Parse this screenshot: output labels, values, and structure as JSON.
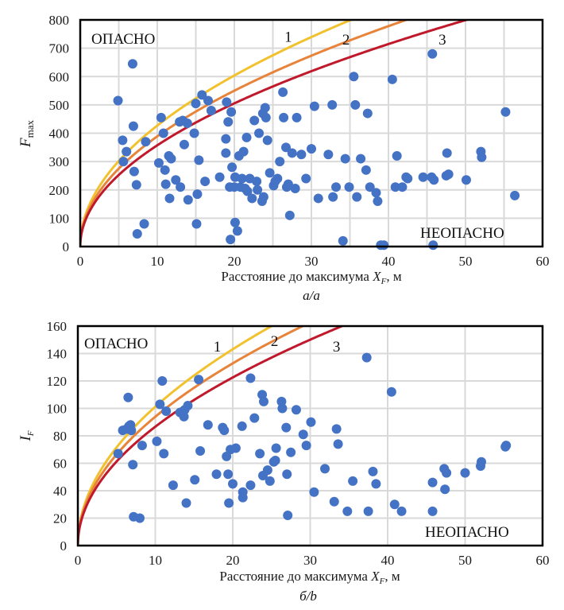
{
  "chart_data": [
    {
      "type": "scatter",
      "panel_caption": "а/а",
      "xlabel_text": "Расстояние до максимума ",
      "xlabel_var": "X",
      "xlabel_sub": "F",
      "xlabel_unit": ", м",
      "ylabel_var": "F",
      "ylabel_sub": "max",
      "xlim": [
        0,
        60
      ],
      "ylim": [
        0,
        800
      ],
      "xticks": [
        0,
        10,
        20,
        30,
        40,
        50,
        60
      ],
      "yticks": [
        0,
        100,
        200,
        300,
        400,
        500,
        600,
        700,
        800
      ],
      "x_minor_grid_step": 5,
      "grid": true,
      "region_labels": {
        "danger": "ОПАСНО",
        "safe": "НЕОПАСНО"
      },
      "curves": [
        {
          "label": "1",
          "color": "#F2C12E",
          "model": "y = a*sqrt(x)",
          "a": 135,
          "label_x": 27,
          "label_y": 740
        },
        {
          "label": "2",
          "color": "#E8833A",
          "model": "y = a*sqrt(x)",
          "a": 123,
          "label_x": 34.5,
          "label_y": 730
        },
        {
          "label": "3",
          "color": "#C0192C",
          "model": "y = a*sqrt(x)",
          "a": 113,
          "label_x": 47,
          "label_y": 730
        }
      ],
      "point_color": "#4472C4",
      "points": [
        [
          4.9,
          515
        ],
        [
          5.5,
          375
        ],
        [
          5.6,
          300
        ],
        [
          6.0,
          335
        ],
        [
          6.8,
          645
        ],
        [
          6.9,
          425
        ],
        [
          7.0,
          265
        ],
        [
          7.3,
          218
        ],
        [
          7.4,
          45
        ],
        [
          8.3,
          80
        ],
        [
          8.5,
          370
        ],
        [
          10.2,
          295
        ],
        [
          10.5,
          455
        ],
        [
          10.8,
          400
        ],
        [
          11.0,
          270
        ],
        [
          11.1,
          220
        ],
        [
          11.5,
          320
        ],
        [
          11.6,
          170
        ],
        [
          11.8,
          310
        ],
        [
          12.4,
          235
        ],
        [
          12.9,
          440
        ],
        [
          13.0,
          210
        ],
        [
          13.3,
          445
        ],
        [
          13.5,
          360
        ],
        [
          13.9,
          435
        ],
        [
          14.0,
          165
        ],
        [
          14.8,
          400
        ],
        [
          15.0,
          505
        ],
        [
          15.1,
          80
        ],
        [
          15.2,
          185
        ],
        [
          15.4,
          305
        ],
        [
          15.8,
          535
        ],
        [
          16.2,
          230
        ],
        [
          16.6,
          515
        ],
        [
          17.0,
          480
        ],
        [
          18.1,
          245
        ],
        [
          18.9,
          330
        ],
        [
          18.9,
          380
        ],
        [
          19.0,
          510
        ],
        [
          19.2,
          440
        ],
        [
          19.4,
          210
        ],
        [
          19.5,
          25
        ],
        [
          19.6,
          475
        ],
        [
          19.7,
          280
        ],
        [
          20.0,
          210
        ],
        [
          20.1,
          245
        ],
        [
          20.1,
          85
        ],
        [
          20.4,
          55
        ],
        [
          20.6,
          320
        ],
        [
          20.8,
          210
        ],
        [
          21.0,
          240
        ],
        [
          21.2,
          335
        ],
        [
          21.4,
          205
        ],
        [
          21.6,
          385
        ],
        [
          21.7,
          195
        ],
        [
          22.0,
          240
        ],
        [
          22.3,
          170
        ],
        [
          22.6,
          445
        ],
        [
          22.9,
          230
        ],
        [
          23.0,
          200
        ],
        [
          23.2,
          400
        ],
        [
          23.6,
          160
        ],
        [
          23.7,
          470
        ],
        [
          23.8,
          175
        ],
        [
          24.0,
          490
        ],
        [
          24.1,
          455
        ],
        [
          24.3,
          375
        ],
        [
          24.6,
          260
        ],
        [
          25.1,
          215
        ],
        [
          25.3,
          230
        ],
        [
          25.6,
          240
        ],
        [
          25.9,
          300
        ],
        [
          26.3,
          545
        ],
        [
          26.4,
          455
        ],
        [
          26.7,
          350
        ],
        [
          26.8,
          210
        ],
        [
          27.0,
          220
        ],
        [
          27.2,
          110
        ],
        [
          27.5,
          330
        ],
        [
          27.9,
          205
        ],
        [
          28.1,
          455
        ],
        [
          28.7,
          325
        ],
        [
          29.3,
          240
        ],
        [
          30.0,
          345
        ],
        [
          30.4,
          495
        ],
        [
          30.9,
          170
        ],
        [
          32.2,
          325
        ],
        [
          32.7,
          500
        ],
        [
          32.8,
          175
        ],
        [
          33.2,
          210
        ],
        [
          34.1,
          20
        ],
        [
          34.4,
          310
        ],
        [
          34.9,
          210
        ],
        [
          35.5,
          600
        ],
        [
          35.7,
          500
        ],
        [
          35.9,
          175
        ],
        [
          36.4,
          310
        ],
        [
          37.1,
          270
        ],
        [
          37.3,
          470
        ],
        [
          37.6,
          210
        ],
        [
          38.4,
          190
        ],
        [
          38.6,
          160
        ],
        [
          39.0,
          5
        ],
        [
          39.4,
          5
        ],
        [
          40.5,
          590
        ],
        [
          40.9,
          210
        ],
        [
          41.1,
          320
        ],
        [
          41.8,
          210
        ],
        [
          42.3,
          245
        ],
        [
          42.5,
          240
        ],
        [
          44.5,
          245
        ],
        [
          45.6,
          245
        ],
        [
          45.7,
          680
        ],
        [
          45.8,
          5
        ],
        [
          45.9,
          235
        ],
        [
          47.5,
          250
        ],
        [
          47.6,
          330
        ],
        [
          47.8,
          255
        ],
        [
          50.1,
          235
        ],
        [
          52.0,
          335
        ],
        [
          52.1,
          315
        ],
        [
          55.2,
          475
        ],
        [
          56.4,
          180
        ]
      ]
    },
    {
      "type": "scatter",
      "panel_caption": "б/b",
      "xlabel_text": "Расстояние до максимума ",
      "xlabel_var": "X",
      "xlabel_sub": "F",
      "xlabel_unit": ", м",
      "ylabel_var": "I",
      "ylabel_sub": "F",
      "xlim": [
        0,
        60
      ],
      "ylim": [
        0,
        160
      ],
      "xticks": [
        0,
        10,
        20,
        30,
        40,
        50,
        60
      ],
      "yticks": [
        0,
        20,
        40,
        60,
        80,
        100,
        120,
        140,
        160
      ],
      "x_minor_grid_step": 10,
      "grid": true,
      "region_labels": {
        "danger": "ОПАСНО",
        "safe": "НЕОПАСНО"
      },
      "curves": [
        {
          "label": "1",
          "color": "#F2C12E",
          "model": "y = a*sqrt(x)",
          "a": 32.0,
          "label_x": 18,
          "label_y": 145
        },
        {
          "label": "2",
          "color": "#E8833A",
          "model": "y = a*sqrt(x)",
          "a": 29.7,
          "label_x": 25.4,
          "label_y": 149
        },
        {
          "label": "3",
          "color": "#C0192C",
          "model": "y = a*sqrt(x)",
          "a": 27.4,
          "label_x": 33.4,
          "label_y": 145
        }
      ],
      "point_color": "#4472C4",
      "points": [
        [
          5.2,
          67
        ],
        [
          5.8,
          84
        ],
        [
          6.3,
          85
        ],
        [
          6.5,
          108
        ],
        [
          6.6,
          87
        ],
        [
          6.8,
          88
        ],
        [
          6.9,
          84
        ],
        [
          7.1,
          59
        ],
        [
          7.2,
          21
        ],
        [
          8.0,
          20
        ],
        [
          8.3,
          73
        ],
        [
          10.2,
          76
        ],
        [
          10.6,
          103
        ],
        [
          10.9,
          120
        ],
        [
          11.1,
          67
        ],
        [
          11.4,
          98
        ],
        [
          12.3,
          44
        ],
        [
          13.2,
          97
        ],
        [
          13.7,
          94
        ],
        [
          13.8,
          99
        ],
        [
          14.0,
          31
        ],
        [
          14.2,
          102
        ],
        [
          15.1,
          48
        ],
        [
          15.6,
          121
        ],
        [
          15.8,
          69
        ],
        [
          16.8,
          88
        ],
        [
          17.9,
          52
        ],
        [
          18.7,
          86
        ],
        [
          18.9,
          84
        ],
        [
          19.2,
          65
        ],
        [
          19.4,
          52
        ],
        [
          19.5,
          31
        ],
        [
          19.7,
          70
        ],
        [
          20.0,
          45
        ],
        [
          20.4,
          71
        ],
        [
          21.2,
          87
        ],
        [
          21.3,
          39
        ],
        [
          21.3,
          35
        ],
        [
          22.3,
          44
        ],
        [
          22.3,
          122
        ],
        [
          22.8,
          93
        ],
        [
          23.5,
          67
        ],
        [
          23.8,
          110
        ],
        [
          24.0,
          105
        ],
        [
          23.9,
          51
        ],
        [
          24.5,
          55
        ],
        [
          24.8,
          47
        ],
        [
          25.3,
          61
        ],
        [
          25.5,
          62
        ],
        [
          25.6,
          71
        ],
        [
          26.3,
          105
        ],
        [
          26.4,
          100
        ],
        [
          26.9,
          86
        ],
        [
          27.0,
          52
        ],
        [
          27.1,
          22
        ],
        [
          27.5,
          68
        ],
        [
          28.2,
          99
        ],
        [
          29.1,
          81
        ],
        [
          29.5,
          73
        ],
        [
          30.1,
          90
        ],
        [
          30.5,
          39
        ],
        [
          31.9,
          56
        ],
        [
          33.1,
          32
        ],
        [
          33.4,
          85
        ],
        [
          33.6,
          74
        ],
        [
          34.8,
          25
        ],
        [
          35.5,
          47
        ],
        [
          37.3,
          137
        ],
        [
          37.5,
          25
        ],
        [
          38.1,
          54
        ],
        [
          38.5,
          45
        ],
        [
          40.5,
          112
        ],
        [
          40.9,
          30
        ],
        [
          41.8,
          25
        ],
        [
          45.8,
          46
        ],
        [
          45.8,
          25
        ],
        [
          47.3,
          56
        ],
        [
          47.4,
          41
        ],
        [
          47.6,
          53
        ],
        [
          50.0,
          53
        ],
        [
          52.0,
          58
        ],
        [
          52.1,
          61
        ],
        [
          55.2,
          72
        ],
        [
          55.3,
          73
        ]
      ]
    }
  ]
}
